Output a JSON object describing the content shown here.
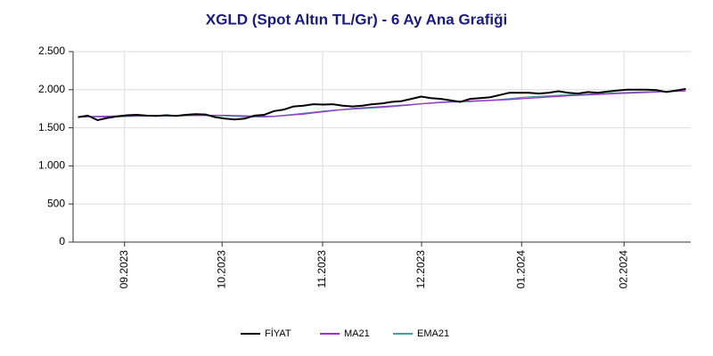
{
  "chart_data": {
    "type": "line",
    "title": "XGLD (Spot Altın TL/Gr) - 6 Ay Ana Grafiği",
    "x": [
      1,
      3,
      5,
      7,
      9,
      11,
      13,
      15,
      17,
      19,
      21,
      23,
      25,
      27,
      29,
      31,
      33,
      35,
      37,
      39,
      41,
      43,
      45,
      47,
      49,
      51,
      53,
      55,
      57,
      59,
      61,
      63,
      65,
      67,
      69,
      71,
      73,
      75,
      77,
      79,
      81,
      83,
      85,
      87,
      89,
      91,
      93,
      95,
      97,
      99,
      101,
      103,
      105,
      107,
      109,
      111,
      113,
      115,
      117,
      119,
      121,
      123,
      125
    ],
    "series": [
      {
        "name": "FİYAT",
        "color": "#000000",
        "values": [
          1640,
          1660,
          1600,
          1630,
          1650,
          1665,
          1670,
          1660,
          1655,
          1665,
          1655,
          1670,
          1680,
          1675,
          1640,
          1620,
          1610,
          1620,
          1660,
          1670,
          1720,
          1740,
          1780,
          1790,
          1810,
          1805,
          1810,
          1790,
          1780,
          1790,
          1810,
          1820,
          1840,
          1850,
          1880,
          1910,
          1890,
          1880,
          1860,
          1840,
          1880,
          1890,
          1900,
          1930,
          1960,
          1960,
          1960,
          1950,
          1960,
          1980,
          1960,
          1950,
          1970,
          1960,
          1975,
          1990,
          2000,
          2000,
          2000,
          1995,
          1970,
          1990,
          2010
        ]
      },
      {
        "name": "MA21",
        "color": "#9932cc",
        "values": [
          1640,
          1645,
          1650,
          1652,
          1655,
          1657,
          1658,
          1660,
          1660,
          1661,
          1661,
          1662,
          1663,
          1664,
          1665,
          1663,
          1660,
          1656,
          1652,
          1650,
          1652,
          1660,
          1670,
          1680,
          1695,
          1710,
          1725,
          1740,
          1752,
          1762,
          1770,
          1778,
          1786,
          1795,
          1805,
          1815,
          1825,
          1835,
          1842,
          1848,
          1852,
          1856,
          1860,
          1866,
          1872,
          1880,
          1888,
          1896,
          1904,
          1912,
          1920,
          1926,
          1932,
          1938,
          1944,
          1950,
          1955,
          1960,
          1965,
          1970,
          1975,
          1980,
          1985
        ]
      },
      {
        "name": "EMA21",
        "color": "#4c9a9a",
        "values": [
          1640,
          1648,
          1645,
          1643,
          1645,
          1648,
          1652,
          1654,
          1655,
          1657,
          1657,
          1659,
          1662,
          1664,
          1662,
          1658,
          1652,
          1646,
          1642,
          1642,
          1650,
          1662,
          1676,
          1690,
          1705,
          1718,
          1730,
          1738,
          1745,
          1752,
          1760,
          1768,
          1778,
          1788,
          1800,
          1815,
          1825,
          1832,
          1838,
          1840,
          1845,
          1852,
          1860,
          1870,
          1882,
          1895,
          1905,
          1912,
          1918,
          1925,
          1932,
          1938,
          1942,
          1946,
          1952,
          1958,
          1963,
          1968,
          1972,
          1975,
          1976,
          1980,
          1986
        ]
      }
    ],
    "xlim": [
      0,
      126
    ],
    "xticks": [
      {
        "value": 10.5,
        "label": "09.2023"
      },
      {
        "value": 30.4,
        "label": "10.2023"
      },
      {
        "value": 50.9,
        "label": "11.2023"
      },
      {
        "value": 71.1,
        "label": "12.2023"
      },
      {
        "value": 91.5,
        "label": "01.2024"
      },
      {
        "value": 112.4,
        "label": "02.2024"
      }
    ],
    "ylim": [
      0,
      2500
    ],
    "yticks": [
      0,
      500,
      {
        "value": 1000,
        "label": "1.000"
      },
      {
        "value": 1500,
        "label": "1.500"
      },
      {
        "value": 2000,
        "label": "2.000"
      },
      {
        "value": 2500,
        "label": "2.500"
      }
    ],
    "grid": true,
    "legend": "bottom"
  }
}
